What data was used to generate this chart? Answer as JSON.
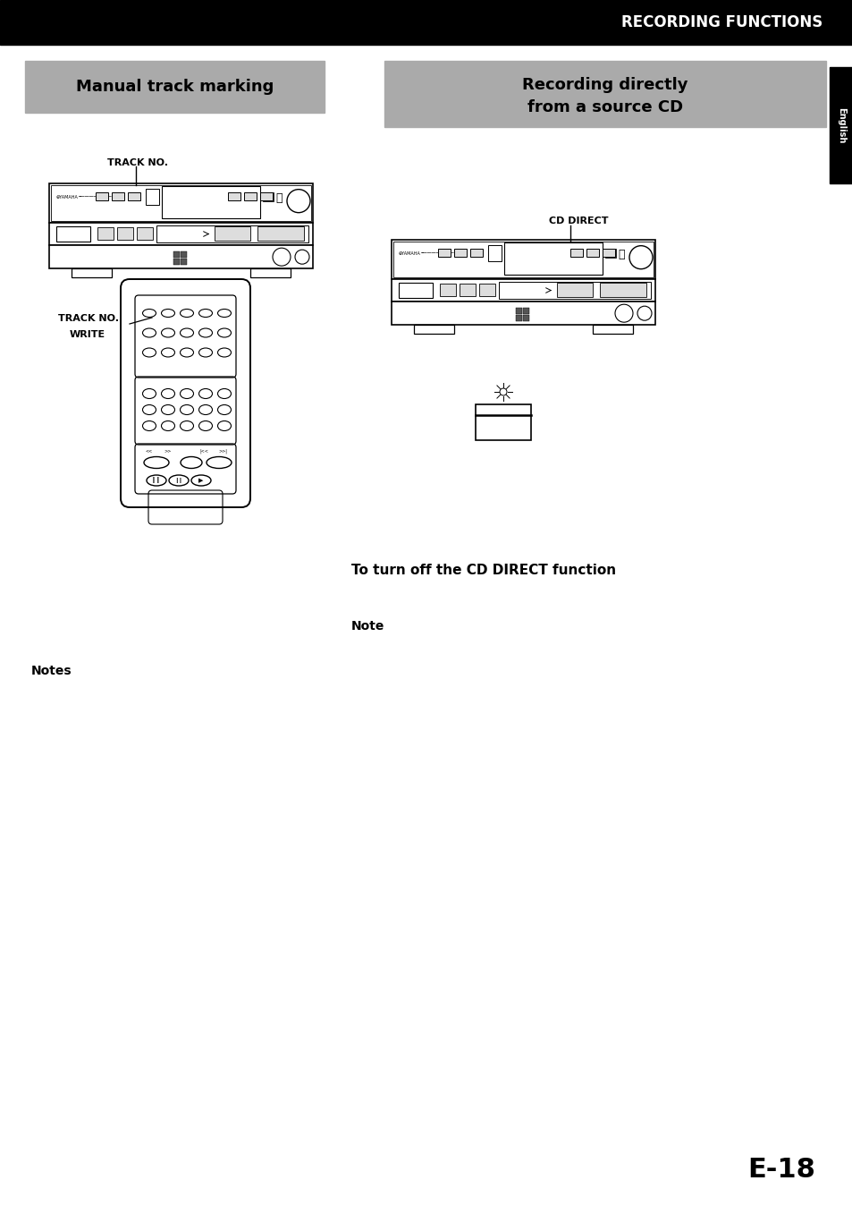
{
  "title": "RECORDING FUNCTIONS",
  "header_bg": "#000000",
  "header_text_color": "#ffffff",
  "section_bg": "#aaaaaa",
  "section1_title": "Manual track marking",
  "section2_title_line1": "Recording directly",
  "section2_title_line2": "from a source CD",
  "label_track_no": "TRACK NO.",
  "label_track_no_write_line1": "TRACK NO.",
  "label_track_no_write_line2": "WRITE",
  "label_cd_direct": "CD DIRECT",
  "text_turn_off": "To turn off the CD DIRECT function",
  "text_note": "Note",
  "text_notes": "Notes",
  "page_number": "E-18",
  "english_tab": "English",
  "bg_color": "#ffffff",
  "fig_width": 9.54,
  "fig_height": 13.48
}
